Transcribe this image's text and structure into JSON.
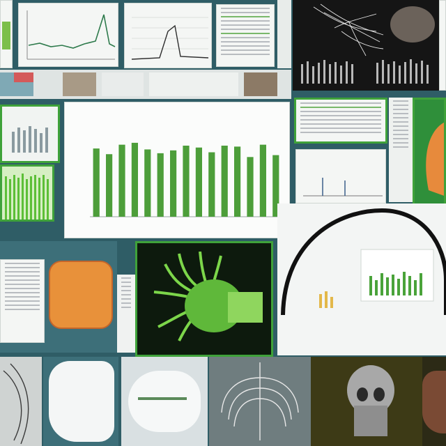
{
  "main_chart": {
    "title": "",
    "xlabel": "",
    "bar_color": "#4d9e3a"
  },
  "chart_data": {
    "type": "bar",
    "categories": [
      "",
      "",
      "",
      "",
      "",
      "",
      "",
      "",
      "",
      "",
      "",
      "",
      "",
      "",
      ""
    ],
    "values": [
      0.72,
      0.66,
      0.76,
      0.78,
      0.71,
      0.67,
      0.7,
      0.75,
      0.73,
      0.68,
      0.75,
      0.74,
      0.63,
      0.76,
      0.65
    ],
    "ylim": [
      0,
      1
    ],
    "grid": false
  },
  "colors": {
    "accent_green": "#3fa23a",
    "lime": "#7cd64a",
    "orange": "#e8913a",
    "teal_bg": "#2f5d66"
  },
  "icons": [
    "wireframe-vessels-icon",
    "brain-icon",
    "skull-icon",
    "spine-icon",
    "organ-3d-icon"
  ]
}
